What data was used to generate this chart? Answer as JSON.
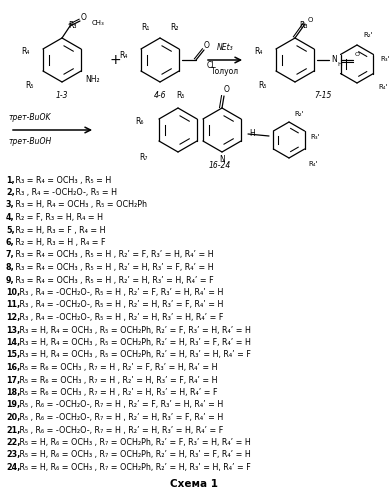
{
  "title": "Схема 1",
  "background_color": "#ffffff",
  "lines": [
    {
      "num": "1,",
      "text": " R₃ = R₄ = OCH₃ , R₅ = H"
    },
    {
      "num": "2,",
      "text": " R₃ , R₄ = -OCH₂O-, R₅ = H"
    },
    {
      "num": "3,",
      "text": " R₃ = H, R₄ = OCH₃ , R₅ = OCH₂Ph"
    },
    {
      "num": "4,",
      "text": " R₂ = F, R₃ = H, R₄ = H"
    },
    {
      "num": "5,",
      "text": " R₂ = H, R₃ = F , R₄ = H"
    },
    {
      "num": "6,",
      "text": " R₂ = H, R₃ = H , R₄ = F"
    },
    {
      "num": "7,",
      "text": " R₃ = R₄ = OCH₃ , R₅ = H , R₂’ = F, R₃’ = H, R₄’ = H"
    },
    {
      "num": "8,",
      "text": " R₃ = R₄ = OCH₃ , R₅ = H , R₂’ = H, R₃’ = F, R₄’ = H"
    },
    {
      "num": "9,",
      "text": " R₃ = R₄ = OCH₃ , R₅ = H , R₂’ = H, R₃’ = H, R₄’ = F"
    },
    {
      "num": "10,",
      "text": " R₃ , R₄ = -OCH₂O-, R₅ = H , R₂’ = F, R₃’ = H, R₄’ = H"
    },
    {
      "num": "11,",
      "text": " R₃ , R₄ = -OCH₂O-, R₅ = H , R₂’ = H, R₃’ = F, R₄’ = H"
    },
    {
      "num": "12,",
      "text": " R₃ , R₄ = -OCH₂O-, R₅ = H , R₂’ = H, R₃’ = H, R₄’ = F"
    },
    {
      "num": "13,",
      "text": " R₃ = H, R₄ = OCH₃ , R₅ = OCH₂Ph, R₂’ = F, R₃’ = H, R₄’ = H"
    },
    {
      "num": "14,",
      "text": " R₃ = H, R₄ = OCH₃ , R₅ = OCH₂Ph, R₂’ = H, R₃’ = F, R₄’ = H"
    },
    {
      "num": "15,",
      "text": " R₃ = H, R₄ = OCH₃ , R₅ = OCH₂Ph, R₂’ = H, R₃’ = H, R₄’ = F"
    },
    {
      "num": "16,",
      "text": " R₅ = R₆ = OCH₃ , R₇ = H , R₂’ = F, R₃’ = H, R₄’ = H"
    },
    {
      "num": "17,",
      "text": " R₅ = R₆ = OCH₃ , R₇ = H , R₂’ = H, R₃’ = F, R₄’ = H"
    },
    {
      "num": "18,",
      "text": " R₅ = R₆ = OCH₃ , R₇ = H , R₂’ = H, R₃’ = H, R₄’ = F"
    },
    {
      "num": "19,",
      "text": " R₅ , R₆ = -OCH₂O-, R₇ = H , R₂’ = F, R₃’ = H, R₄’ = H"
    },
    {
      "num": "20,",
      "text": " R₅ , R₆ = -OCH₂O-, R₇ = H , R₂’ = H, R₃’ = F, R₄’ = H"
    },
    {
      "num": "21,",
      "text": " R₅ , R₆ = -OCH₂O-, R₇ = H , R₂’ = H, R₃’ = H, R₄’ = F"
    },
    {
      "num": "22,",
      "text": " R₅ = H, R₆ = OCH₃ , R₇ = OCH₂Ph, R₂’ = F, R₃’ = H, R₄’ = H"
    },
    {
      "num": "23,",
      "text": " R₅ = H, R₆ = OCH₃ , R₇ = OCH₂Ph, R₂’ = H, R₃’ = F, R₄’ = H"
    },
    {
      "num": "24,",
      "text": " R₅ = H, R₆ = OCH₃ , R₇ = OCH₂Ph, R₂’ = H, R₃’ = H, R₄’ = F"
    }
  ],
  "fontsize": 5.8,
  "title_fontsize": 7.5
}
